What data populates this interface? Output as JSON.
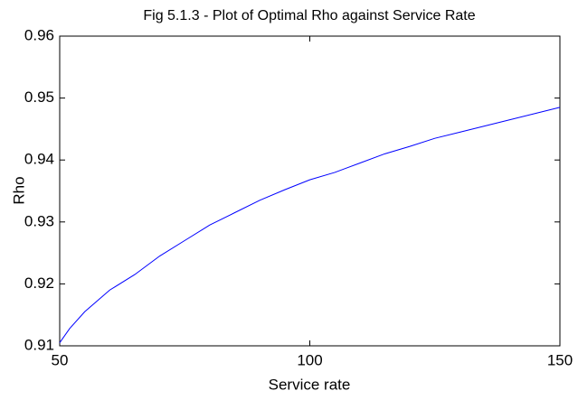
{
  "chart_data": {
    "type": "line",
    "title": "Fig 5.1.3 - Plot of Optimal Rho against Service Rate",
    "x_label": "Service rate",
    "y_label": "Rho",
    "x": [
      50,
      52,
      55,
      60,
      65,
      70,
      75,
      80,
      85,
      90,
      95,
      100,
      105,
      110,
      115,
      120,
      125,
      130,
      135,
      140,
      145,
      150
    ],
    "series": [
      {
        "name": "Rho",
        "color": "#0000ff",
        "values": [
          0.9105,
          0.9128,
          0.9155,
          0.919,
          0.9215,
          0.9245,
          0.927,
          0.9295,
          0.9315,
          0.9335,
          0.9352,
          0.9368,
          0.938,
          0.9395,
          0.941,
          0.9422,
          0.9435,
          0.9445,
          0.9455,
          0.9465,
          0.9475,
          0.9485
        ]
      }
    ],
    "xlim": [
      50,
      150
    ],
    "xticks": [
      50,
      100,
      150
    ],
    "ylim": [
      0.91,
      0.96
    ],
    "yticks": [
      0.91,
      0.92,
      0.93,
      0.94,
      0.95,
      0.96
    ]
  }
}
